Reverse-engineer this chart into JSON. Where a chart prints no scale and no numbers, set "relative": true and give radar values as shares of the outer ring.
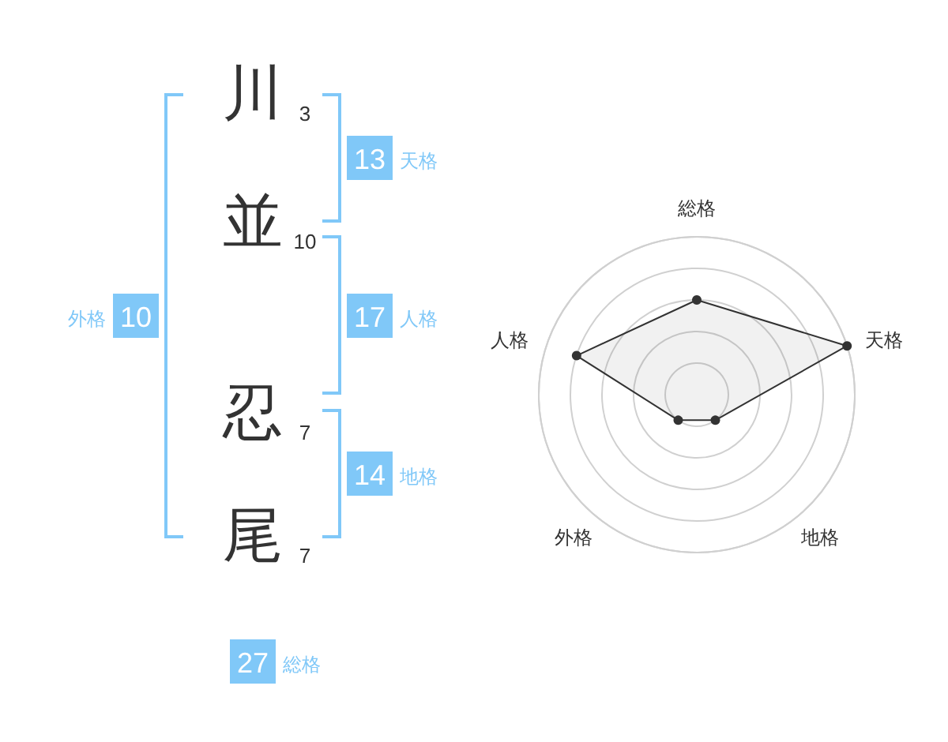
{
  "chart_data": [
    {
      "type": "other",
      "categories": [
        "天格",
        "外格",
        "人格",
        "地格",
        "総格"
      ],
      "values": [
        13,
        10,
        17,
        14,
        27
      ],
      "data_labels": true,
      "color": "#80c8f8",
      "annotations": [
        "川",
        "3",
        "並",
        "10",
        "忍",
        "7",
        "尾",
        "7"
      ]
    },
    {
      "type": "radar",
      "categories": [
        "総格",
        "天格",
        "地格",
        "外格",
        "人格"
      ],
      "relative": true,
      "grid": true,
      "marker": "circle",
      "series": [
        {
          "color": "#333333",
          "values": [
            0.6,
            1,
            0.2,
            0.2,
            0.8
          ]
        }
      ]
    }
  ]
}
